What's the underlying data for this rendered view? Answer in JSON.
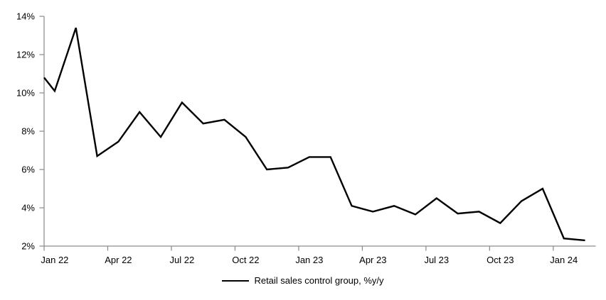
{
  "chart_data": {
    "type": "line",
    "title": "",
    "xlabel": "",
    "ylabel": "",
    "grid": false,
    "legend_position": "bottom",
    "legend_label": "Retail sales control group, %y/y",
    "background": "#FFFFFF",
    "axis_color": "#8C8C8C",
    "text_color": "#000000",
    "ylim": [
      2,
      14
    ],
    "yticks": [
      2,
      4,
      6,
      8,
      10,
      12,
      14
    ],
    "ytick_labels": [
      "2%",
      "4%",
      "6%",
      "8%",
      "10%",
      "12%",
      "14%"
    ],
    "xtick_labels": [
      "Jan 22",
      "Apr 22",
      "Jul 22",
      "Oct 22",
      "Jan 23",
      "Apr 23",
      "Jul 23",
      "Oct 23",
      "Jan 24"
    ],
    "xtick_month_indices": [
      0,
      3,
      6,
      9,
      12,
      15,
      18,
      21,
      24
    ],
    "xtick_interval_months": 3,
    "categories": [
      "Jan 22",
      "Feb 22",
      "Mar 22",
      "Apr 22",
      "May 22",
      "Jun 22",
      "Jul 22",
      "Aug 22",
      "Sep 22",
      "Oct 22",
      "Nov 22",
      "Dec 22",
      "Jan 23",
      "Feb 23",
      "Mar 23",
      "Apr 23",
      "May 23",
      "Jun 23",
      "Jul 23",
      "Aug 23",
      "Sep 23",
      "Oct 23",
      "Nov 23",
      "Dec 23",
      "Jan 24",
      "Feb 24"
    ],
    "series": [
      {
        "name": "Retail sales control group, %y/y",
        "color": "#000000",
        "enters_from_left_axis_at": 10.8,
        "values": [
          10.1,
          13.4,
          6.7,
          7.45,
          9.0,
          7.7,
          9.5,
          8.4,
          8.6,
          7.7,
          6.0,
          6.1,
          6.65,
          6.65,
          4.1,
          3.8,
          4.1,
          3.65,
          4.5,
          3.7,
          3.8,
          3.2,
          4.35,
          5.0,
          2.4,
          2.3
        ]
      }
    ]
  }
}
